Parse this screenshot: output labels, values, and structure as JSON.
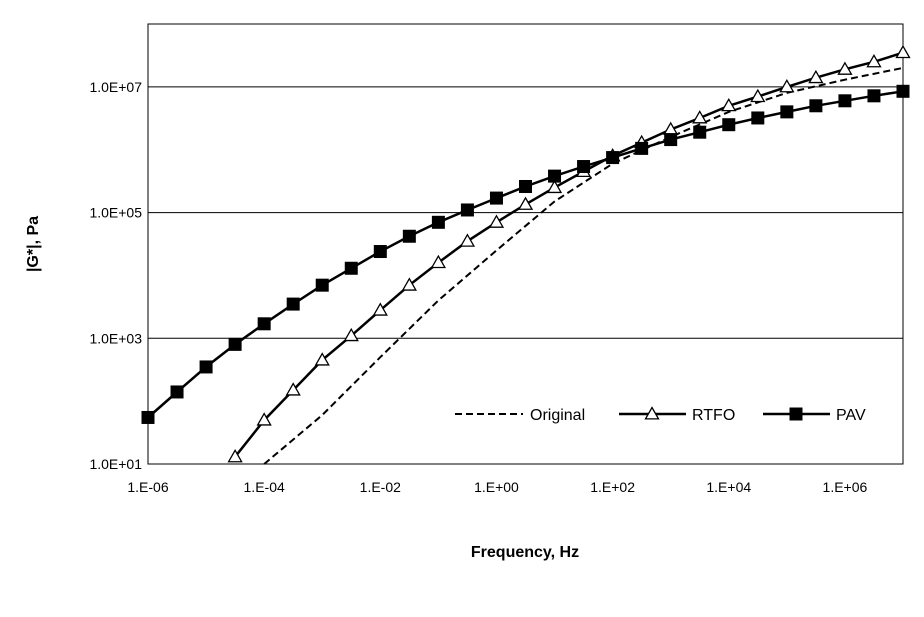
{
  "chart_data": {
    "type": "line",
    "title": "",
    "xlabel": "Frequency, Hz",
    "ylabel": "|G*|, Pa",
    "x_scale": "log",
    "y_scale": "log",
    "xlim": [
      1e-06,
      10000000.0
    ],
    "ylim": [
      10,
      100000000.0
    ],
    "x_ticks": [
      1e-06,
      0.0001,
      0.01,
      1,
      100,
      10000,
      1000000
    ],
    "x_tick_labels": [
      "1.E-06",
      "1.E-04",
      "1.E-02",
      "1.E+00",
      "1.E+02",
      "1.E+04",
      "1.E+06"
    ],
    "y_ticks": [
      10,
      1000,
      100000,
      10000000
    ],
    "y_tick_labels": [
      "1.0E+01",
      "1.0E+03",
      "1.0E+05",
      "1.0E+07"
    ],
    "grid": "horizontal",
    "legend_position": "bottom-right",
    "series": [
      {
        "name": "Original",
        "style": "dashed",
        "marker": "none",
        "color": "#000000",
        "x": [
          0.0001,
          0.001,
          0.01,
          0.1,
          1,
          10,
          100,
          1000,
          10000,
          100000,
          1000000,
          10000000
        ],
        "y": [
          10,
          60,
          500,
          4000,
          25000,
          150000,
          600000,
          1600000,
          4000000,
          8000000,
          13000000,
          20000000
        ]
      },
      {
        "name": "RTFO",
        "style": "solid",
        "marker": "triangle-open",
        "color": "#000000",
        "x": [
          3.162e-05,
          0.0001,
          0.0003162,
          0.001,
          0.003162,
          0.01,
          0.03162,
          0.1,
          0.3162,
          1,
          3.162,
          10,
          31.62,
          100,
          316.2,
          1000,
          3162,
          10000,
          31620,
          100000,
          316200,
          1000000,
          3162000,
          10000000
        ],
        "y": [
          13,
          50,
          150,
          450,
          1100,
          2800,
          7000,
          16000,
          35000,
          70000,
          135000,
          250000,
          450000,
          800000,
          1300000,
          2100000,
          3200000,
          5000000,
          7000000,
          10000000,
          14000000,
          19000000,
          25000000,
          35000000
        ]
      },
      {
        "name": "PAV",
        "style": "solid",
        "marker": "square-filled",
        "color": "#000000",
        "x": [
          1e-06,
          3.162e-06,
          1e-05,
          3.162e-05,
          0.0001,
          0.0003162,
          0.001,
          0.003162,
          0.01,
          0.03162,
          0.1,
          0.3162,
          1,
          3.162,
          10,
          31.62,
          100,
          316.2,
          1000,
          3162,
          10000,
          31620,
          100000,
          316200,
          1000000,
          3162000,
          10000000
        ],
        "y": [
          55,
          140,
          350,
          800,
          1700,
          3500,
          7000,
          13000,
          24000,
          42000,
          70000,
          110000,
          170000,
          260000,
          380000,
          540000,
          750000,
          1050000,
          1450000,
          1900000,
          2500000,
          3200000,
          4000000,
          5000000,
          6000000,
          7200000,
          8500000
        ]
      }
    ]
  }
}
